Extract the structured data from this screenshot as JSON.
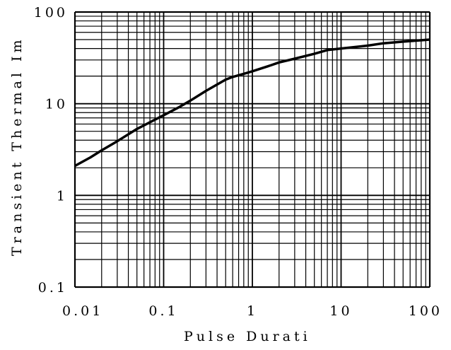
{
  "chart_data": {
    "type": "line",
    "xlabel": "Pulse Durati",
    "ylabel": "Transient Thermal Im",
    "x_scale": "log",
    "y_scale": "log",
    "xlim": [
      0.01,
      100
    ],
    "ylim": [
      0.1,
      100
    ],
    "grid": true,
    "x_tick_labels": [
      "0.01",
      "0.1",
      "1",
      "10",
      "100"
    ],
    "y_tick_labels": [
      "0.1",
      "1",
      "10",
      "100"
    ],
    "series": [
      {
        "color": "#000000",
        "x": [
          0.01,
          0.015,
          0.02,
          0.03,
          0.05,
          0.08,
          0.1,
          0.15,
          0.2,
          0.3,
          0.5,
          0.6,
          0.8,
          1,
          1.5,
          2,
          3,
          5,
          7,
          10,
          20,
          30,
          50,
          100
        ],
        "y": [
          2.1,
          2.6,
          3.1,
          3.9,
          5.3,
          6.7,
          7.5,
          9.2,
          10.8,
          13.8,
          18.3,
          19.6,
          21.2,
          22.6,
          25.6,
          28.2,
          31.0,
          35.0,
          38.5,
          40.0,
          43.0,
          45.6,
          47.5,
          50.0
        ]
      }
    ]
  }
}
